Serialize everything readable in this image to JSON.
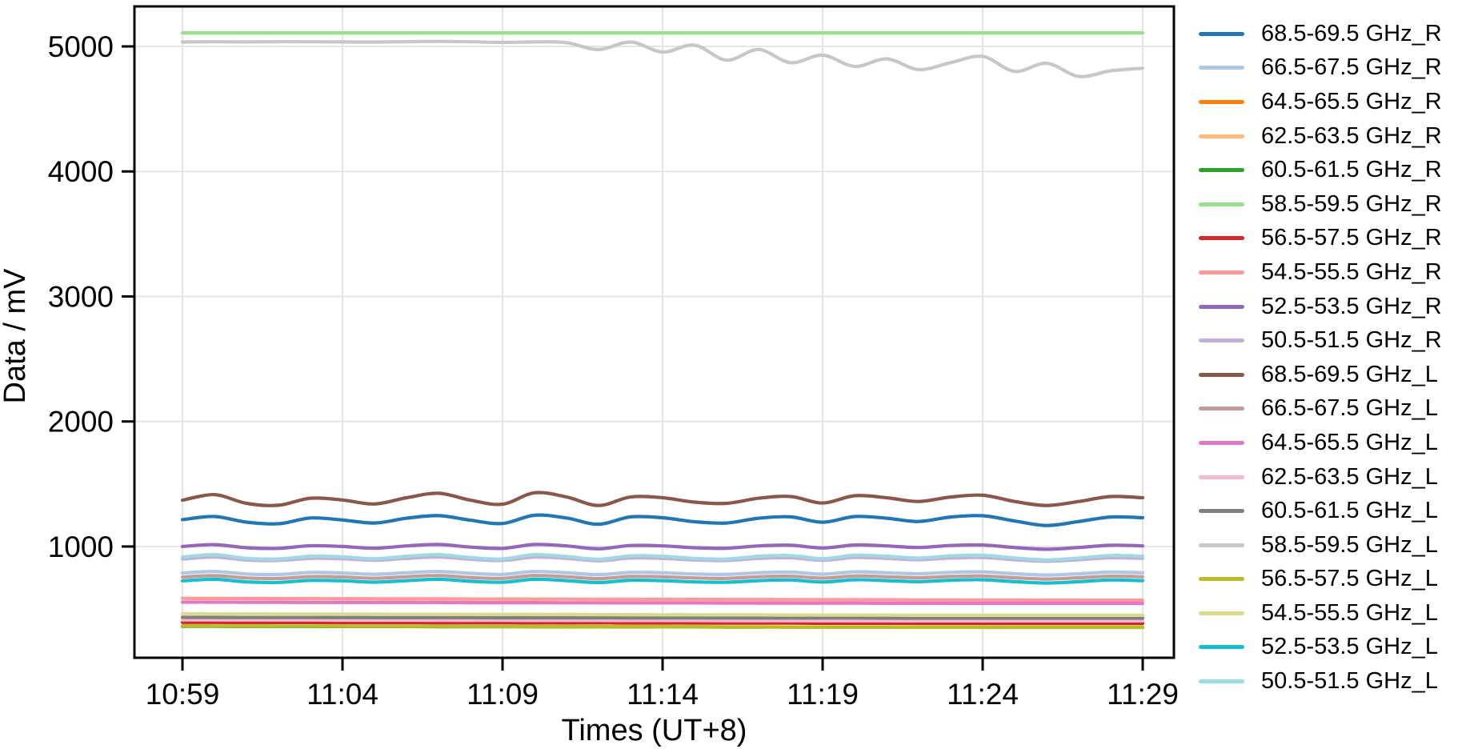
{
  "chart_data": {
    "type": "line",
    "title": "",
    "xlabel": "Times (UT+8)",
    "ylabel": "Data / mV",
    "grid": true,
    "legend_position": "right-outside",
    "x_unit": "minutes after 10:59",
    "x": [
      0,
      1,
      2,
      3,
      4,
      5,
      6,
      7,
      8,
      9,
      10,
      11,
      12,
      13,
      14,
      15,
      16,
      17,
      18,
      19,
      20,
      21,
      22,
      23,
      24,
      25,
      26,
      27,
      28,
      29,
      30
    ],
    "x_ticks": [
      {
        "t": 0,
        "label": "10:59"
      },
      {
        "t": 5,
        "label": "11:04"
      },
      {
        "t": 10,
        "label": "11:09"
      },
      {
        "t": 15,
        "label": "11:14"
      },
      {
        "t": 20,
        "label": "11:19"
      },
      {
        "t": 25,
        "label": "11:24"
      },
      {
        "t": 30,
        "label": "11:29"
      }
    ],
    "y_ticks": [
      1000,
      2000,
      3000,
      4000,
      5000
    ],
    "ylim": [
      110,
      5320
    ],
    "xlim": [
      -1.5,
      30.975
    ],
    "series": [
      {
        "name": "68.5-69.5 GHz_R",
        "color": "#1f77b4",
        "values": [
          1215,
          1240,
          1195,
          1182,
          1228,
          1212,
          1188,
          1226,
          1247,
          1210,
          1184,
          1250,
          1228,
          1178,
          1237,
          1230,
          1198,
          1188,
          1226,
          1237,
          1194,
          1240,
          1226,
          1200,
          1236,
          1246,
          1204,
          1168,
          1200,
          1236,
          1230
        ]
      },
      {
        "name": "66.5-67.5 GHz_R",
        "color": "#aec7e8",
        "values": [
          788,
          800,
          780,
          776,
          792,
          788,
          778,
          790,
          800,
          785,
          777,
          800,
          790,
          775,
          793,
          790,
          780,
          777,
          790,
          795,
          779,
          797,
          790,
          782,
          793,
          797,
          782,
          772,
          782,
          795,
          790
        ]
      },
      {
        "name": "64.5-65.5 GHz_R",
        "color": "#ff7f0e",
        "values": [
          397,
          397,
          396,
          396,
          396,
          395,
          395,
          395,
          394,
          394,
          394,
          393,
          393,
          393,
          392,
          392,
          392,
          391,
          391,
          391,
          390,
          390,
          390,
          389,
          389,
          389,
          388,
          388,
          388,
          388,
          388
        ]
      },
      {
        "name": "62.5-63.5 GHz_R",
        "color": "#ffbb78",
        "values": [
          402,
          402,
          401,
          401,
          401,
          400,
          400,
          400,
          399,
          399,
          399,
          398,
          398,
          398,
          397,
          397,
          397,
          396,
          396,
          396,
          395,
          395,
          395,
          394,
          394,
          394,
          394,
          394,
          394,
          394,
          394
        ]
      },
      {
        "name": "60.5-61.5 GHz_R",
        "color": "#2ca02c",
        "values": [
          362,
          362,
          361,
          361,
          361,
          360,
          360,
          360,
          359,
          359,
          359,
          358,
          358,
          358,
          357,
          357,
          357,
          356,
          356,
          356,
          355,
          355,
          355,
          354,
          354,
          354,
          354,
          354,
          354,
          354,
          354
        ]
      },
      {
        "name": "58.5-59.5 GHz_R",
        "color": "#98df8a",
        "values": [
          5108,
          5108,
          5108,
          5108,
          5108,
          5108,
          5108,
          5108,
          5108,
          5108,
          5108,
          5108,
          5108,
          5108,
          5108,
          5108,
          5108,
          5108,
          5108,
          5108,
          5108,
          5108,
          5108,
          5108,
          5108,
          5108,
          5108,
          5108,
          5108,
          5108,
          5108
        ]
      },
      {
        "name": "56.5-57.5 GHz_R",
        "color": "#d62728",
        "values": [
          393,
          393,
          392,
          392,
          392,
          391,
          391,
          391,
          390,
          390,
          390,
          389,
          389,
          389,
          388,
          388,
          388,
          387,
          387,
          387,
          386,
          386,
          386,
          385,
          385,
          385,
          385,
          385,
          385,
          385,
          385
        ]
      },
      {
        "name": "54.5-55.5 GHz_R",
        "color": "#ff9896",
        "values": [
          585,
          584,
          584,
          583,
          583,
          582,
          582,
          581,
          581,
          580,
          580,
          579,
          579,
          578,
          578,
          577,
          577,
          576,
          576,
          575,
          575,
          574,
          574,
          573,
          573,
          572,
          572,
          571,
          571,
          570,
          570
        ]
      },
      {
        "name": "52.5-53.5 GHz_R",
        "color": "#9467bd",
        "values": [
          1000,
          1015,
          990,
          985,
          1006,
          1000,
          986,
          1005,
          1016,
          995,
          985,
          1016,
          1005,
          982,
          1008,
          1005,
          990,
          986,
          1005,
          1010,
          988,
          1012,
          1005,
          992,
          1008,
          1012,
          992,
          978,
          992,
          1010,
          1005
        ]
      },
      {
        "name": "50.5-51.5 GHz_R",
        "color": "#c5b0d5",
        "values": [
          900,
          915,
          892,
          888,
          905,
          902,
          890,
          905,
          915,
          898,
          888,
          915,
          905,
          886,
          908,
          905,
          892,
          888,
          905,
          910,
          890,
          912,
          905,
          894,
          908,
          912,
          894,
          882,
          894,
          910,
          905
        ]
      },
      {
        "name": "68.5-69.5 GHz_L",
        "color": "#8c564b",
        "values": [
          1370,
          1415,
          1345,
          1330,
          1386,
          1372,
          1340,
          1390,
          1426,
          1370,
          1338,
          1430,
          1396,
          1328,
          1396,
          1390,
          1355,
          1345,
          1386,
          1400,
          1348,
          1406,
          1390,
          1360,
          1396,
          1410,
          1360,
          1328,
          1360,
          1400,
          1390
        ]
      },
      {
        "name": "66.5-67.5 GHz_L",
        "color": "#c49c94",
        "values": [
          755,
          767,
          748,
          744,
          759,
          756,
          746,
          758,
          768,
          752,
          745,
          768,
          758,
          743,
          760,
          758,
          748,
          745,
          758,
          762,
          747,
          764,
          758,
          750,
          760,
          764,
          750,
          740,
          750,
          762,
          758
        ]
      },
      {
        "name": "64.5-65.5 GHz_L",
        "color": "#e377c2",
        "values": [
          555,
          555,
          554,
          554,
          553,
          553,
          553,
          552,
          552,
          551,
          551,
          551,
          550,
          550,
          549,
          549,
          549,
          548,
          548,
          547,
          547,
          547,
          546,
          546,
          545,
          545,
          545,
          545,
          545,
          545,
          545
        ]
      },
      {
        "name": "62.5-63.5 GHz_L",
        "color": "#f7b6d2",
        "values": [
          413,
          413,
          412,
          412,
          412,
          411,
          411,
          411,
          410,
          410,
          410,
          409,
          409,
          409,
          408,
          408,
          408,
          407,
          407,
          407,
          406,
          406,
          406,
          405,
          405,
          405,
          405,
          405,
          405,
          405,
          405
        ]
      },
      {
        "name": "60.5-61.5 GHz_L",
        "color": "#7f7f7f",
        "values": [
          433,
          433,
          432,
          432,
          432,
          432,
          431,
          431,
          431,
          431,
          430,
          430,
          430,
          430,
          429,
          429,
          429,
          429,
          428,
          428,
          428,
          428,
          427,
          427,
          427,
          427,
          427,
          427,
          427,
          427,
          427
        ]
      },
      {
        "name": "58.5-59.5 GHz_L",
        "color": "#c7c7c7",
        "values": [
          5035,
          5037,
          5036,
          5038,
          5037,
          5036,
          5035,
          5038,
          5040,
          5037,
          5032,
          5036,
          5030,
          4975,
          5035,
          4955,
          5010,
          4890,
          4975,
          4870,
          4930,
          4840,
          4900,
          4815,
          4870,
          4920,
          4800,
          4865,
          4760,
          4805,
          4825
        ]
      },
      {
        "name": "56.5-57.5 GHz_L",
        "color": "#bcbd22",
        "values": [
          366,
          365,
          365,
          364,
          364,
          363,
          363,
          362,
          362,
          361,
          361,
          360,
          360,
          359,
          359,
          358,
          358,
          357,
          357,
          356,
          356,
          355,
          355,
          354,
          354,
          353,
          353,
          353,
          353,
          353,
          353
        ]
      },
      {
        "name": "54.5-55.5 GHz_L",
        "color": "#dbdb8d",
        "values": [
          462,
          461,
          461,
          460,
          460,
          459,
          459,
          458,
          458,
          457,
          457,
          456,
          456,
          455,
          455,
          454,
          454,
          453,
          453,
          452,
          452,
          451,
          451,
          450,
          450,
          450,
          450,
          450,
          450,
          450,
          450
        ]
      },
      {
        "name": "52.5-53.5 GHz_L",
        "color": "#17becf",
        "values": [
          725,
          738,
          717,
          713,
          729,
          726,
          715,
          727,
          738,
          722,
          714,
          738,
          727,
          712,
          730,
          727,
          717,
          714,
          727,
          732,
          716,
          734,
          727,
          719,
          730,
          734,
          719,
          708,
          719,
          732,
          727
        ]
      },
      {
        "name": "50.5-51.5 GHz_L",
        "color": "#9edae5",
        "values": [
          915,
          935,
          905,
          900,
          922,
          918,
          902,
          922,
          935,
          912,
          900,
          935,
          920,
          898,
          925,
          922,
          905,
          900,
          922,
          928,
          903,
          930,
          922,
          908,
          925,
          930,
          908,
          893,
          908,
          928,
          922
        ]
      }
    ]
  }
}
